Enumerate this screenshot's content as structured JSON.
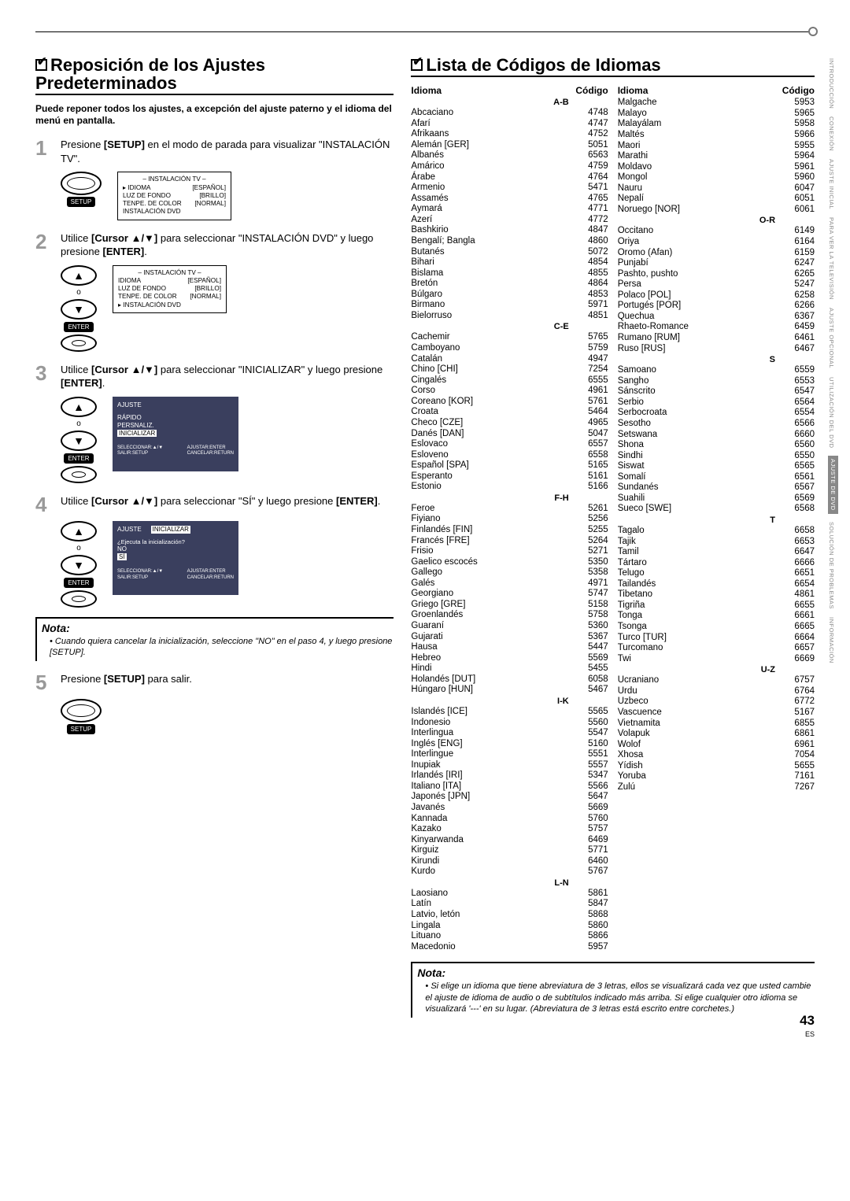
{
  "sections": {
    "reset": "Reposición de los Ajustes  Predeterminados",
    "codes": "Lista de Códigos de Idiomas"
  },
  "intro": "Puede reponer todos los ajustes, a excepción del ajuste paterno y el idioma del menú en pantalla.",
  "steps": {
    "s1": {
      "n": "1",
      "a": "Presione ",
      "b": "[SETUP]",
      "c": " en el modo de parada para visualizar \"INSTALACIÓN TV\"."
    },
    "s2": {
      "n": "2",
      "a": "Utilice ",
      "b": "[Cursor ▲/▼]",
      "c": " para seleccionar \"INSTALACIÓN DVD\" y luego presione ",
      "d": "[ENTER]",
      "e": "."
    },
    "s3": {
      "n": "3",
      "a": "Utilice ",
      "b": "[Cursor ▲/▼]",
      "c": " para seleccionar \"INICIALIZAR\" y luego presione ",
      "d": "[ENTER]",
      "e": "."
    },
    "s4": {
      "n": "4",
      "a": "Utilice ",
      "b": "[Cursor ▲/▼]",
      "c": " para seleccionar \"SÍ\" y luego presione ",
      "d": "[ENTER]",
      "e": "."
    },
    "s5": {
      "n": "5",
      "a": "Presione ",
      "b": "[SETUP]",
      "c": " para salir."
    }
  },
  "labels": {
    "setup": "SETUP",
    "enter": "ENTER",
    "o": "o"
  },
  "tv1": {
    "title": "–  INSTALACIÓN TV  –",
    "rows": [
      [
        "▸ IDIOMA",
        "[ESPAÑOL]"
      ],
      [
        "LUZ DE FONDO",
        "[BRILLO]"
      ],
      [
        "TENPE. DE COLOR",
        "[NORMAL]"
      ],
      [
        "INSTALACIÓN DVD",
        ""
      ]
    ]
  },
  "tv2": {
    "title": "–  INSTALACIÓN TV  –",
    "rows": [
      [
        "IDIOMA",
        "[ESPAÑOL]"
      ],
      [
        "LUZ DE FONDO",
        "[BRILLO]"
      ],
      [
        "TENPE. DE COLOR",
        "[NORMAL]"
      ],
      [
        "▸ INSTALACIÓN DVD",
        ""
      ]
    ]
  },
  "tv3": {
    "title": "AJUSTE",
    "rows": [
      "RÁPIDO",
      "PERSNALIZ.",
      "INICIALIZAR"
    ],
    "selected": 2,
    "footer": [
      "SELECCIONAR:▲/▼",
      "AJUSTAR:ENTER",
      "SALIR:SETUP",
      "CANCELAR:RETURN"
    ]
  },
  "tv4": {
    "title": "AJUSTE",
    "tab2": "INICIALIZAR",
    "question": "¿Ejecuta la inicialización?",
    "rows": [
      "NO",
      "SÍ"
    ],
    "selected": 1,
    "footer": [
      "SELECCIONAR:▲/▼",
      "AJUSTAR:ENTER",
      "SALIR:SETUP",
      "CANCELAR:RETURN"
    ]
  },
  "nota1": {
    "title": "Nota:",
    "items": [
      "Cuando quiera cancelar la inicialización, seleccione \"NO\" en el paso 4, y luego presione  [SETUP]."
    ]
  },
  "nota2": {
    "title": "Nota:",
    "items": [
      "Si elige un idioma que tiene abreviatura de 3 letras, ellos se visualizará cada vez que usted cambie el ajuste de idioma de audio o de subtítulos indicado más arriba. Si elige cualquier otro idioma se visualizará '---' en su lugar. (Abreviatura de 3 letras está escrito entre corchetes.)"
    ]
  },
  "langHeaders": {
    "idioma": "Idioma",
    "codigo": "Código"
  },
  "langCol1": [
    {
      "grp": "A-B"
    },
    {
      "n": "Abcaciano",
      "c": "4748"
    },
    {
      "n": "Afarí",
      "c": "4747"
    },
    {
      "n": "Afrikaans",
      "c": "4752"
    },
    {
      "n": "Alemán [GER]",
      "c": "5051"
    },
    {
      "n": "Albanés",
      "c": "6563"
    },
    {
      "n": "Amárico",
      "c": "4759"
    },
    {
      "n": "Árabe",
      "c": "4764"
    },
    {
      "n": "Armenio",
      "c": "5471"
    },
    {
      "n": "Assamés",
      "c": "4765"
    },
    {
      "n": "Aymará",
      "c": "4771"
    },
    {
      "n": "Azerí",
      "c": "4772"
    },
    {
      "n": "Bashkirio",
      "c": "4847"
    },
    {
      "n": "Bengalí; Bangla",
      "c": "4860"
    },
    {
      "n": "Butanés",
      "c": "5072"
    },
    {
      "n": "Bihari",
      "c": "4854"
    },
    {
      "n": "Bislama",
      "c": "4855"
    },
    {
      "n": "Bretón",
      "c": "4864"
    },
    {
      "n": "Búlgaro",
      "c": "4853"
    },
    {
      "n": "Birmano",
      "c": "5971"
    },
    {
      "n": "Bielorruso",
      "c": "4851"
    },
    {
      "grp": "C-E"
    },
    {
      "n": "Cachemir",
      "c": "5765"
    },
    {
      "n": "Camboyano",
      "c": "5759"
    },
    {
      "n": "Catalán",
      "c": "4947"
    },
    {
      "n": "Chino [CHI]",
      "c": "7254"
    },
    {
      "n": "Cingalés",
      "c": "6555"
    },
    {
      "n": "Corso",
      "c": "4961"
    },
    {
      "n": "Coreano [KOR]",
      "c": "5761"
    },
    {
      "n": "Croata",
      "c": "5464"
    },
    {
      "n": "Checo [CZE]",
      "c": "4965"
    },
    {
      "n": "Danés [DAN]",
      "c": "5047"
    },
    {
      "n": "Eslovaco",
      "c": "6557"
    },
    {
      "n": "Esloveno",
      "c": "6558"
    },
    {
      "n": "Español [SPA]",
      "c": "5165"
    },
    {
      "n": "Esperanto",
      "c": "5161"
    },
    {
      "n": "Estonio",
      "c": "5166"
    },
    {
      "grp": "F-H"
    },
    {
      "n": "Feroe",
      "c": "5261"
    },
    {
      "n": "Fiyiano",
      "c": "5256"
    },
    {
      "n": "Finlandés [FIN]",
      "c": "5255"
    },
    {
      "n": "Francés [FRE]",
      "c": "5264"
    },
    {
      "n": "Frisio",
      "c": "5271"
    },
    {
      "n": "Gaelico escocés",
      "c": "5350"
    },
    {
      "n": "Gallego",
      "c": "5358"
    },
    {
      "n": "Galés",
      "c": "4971"
    },
    {
      "n": "Georgiano",
      "c": "5747"
    },
    {
      "n": "Griego [GRE]",
      "c": "5158"
    },
    {
      "n": "Groenlandés",
      "c": "5758"
    },
    {
      "n": "Guaraní",
      "c": "5360"
    },
    {
      "n": "Gujarati",
      "c": "5367"
    },
    {
      "n": "Hausa",
      "c": "5447"
    },
    {
      "n": "Hebreo",
      "c": "5569"
    },
    {
      "n": "Hindi",
      "c": "5455"
    },
    {
      "n": "Holandés [DUT]",
      "c": "6058"
    },
    {
      "n": "Húngaro [HUN]",
      "c": "5467"
    },
    {
      "grp": "I-K"
    },
    {
      "n": "Islandés [ICE]",
      "c": "5565"
    },
    {
      "n": "Indonesio",
      "c": "5560"
    },
    {
      "n": "Interlingua",
      "c": "5547"
    },
    {
      "n": "Inglés [ENG]",
      "c": "5160"
    },
    {
      "n": "Interlingue",
      "c": "5551"
    },
    {
      "n": "Inupiak",
      "c": "5557"
    },
    {
      "n": "Irlandés [IRI]",
      "c": "5347"
    },
    {
      "n": "Italiano [ITA]",
      "c": "5566"
    },
    {
      "n": "Japonés [JPN]",
      "c": "5647"
    },
    {
      "n": "Javanés",
      "c": "5669"
    },
    {
      "n": "Kannada",
      "c": "5760"
    },
    {
      "n": "Kazako",
      "c": "5757"
    },
    {
      "n": "Kinyarwanda",
      "c": "6469"
    },
    {
      "n": "Kirguiz",
      "c": "5771"
    },
    {
      "n": "Kirundi",
      "c": "6460"
    },
    {
      "n": "Kurdo",
      "c": "5767"
    },
    {
      "grp": "L-N"
    },
    {
      "n": "Laosiano",
      "c": "5861"
    },
    {
      "n": "Latín",
      "c": "5847"
    },
    {
      "n": "Latvio, letón",
      "c": "5868"
    },
    {
      "n": "Lingala",
      "c": "5860"
    },
    {
      "n": "Lituano",
      "c": "5866"
    },
    {
      "n": "Macedonio",
      "c": "5957"
    }
  ],
  "langCol2": [
    {
      "n": "Malgache",
      "c": "5953"
    },
    {
      "n": "Malayo",
      "c": "5965"
    },
    {
      "n": "Malayálam",
      "c": "5958"
    },
    {
      "n": "Maltés",
      "c": "5966"
    },
    {
      "n": "Maori",
      "c": "5955"
    },
    {
      "n": "Marathi",
      "c": "5964"
    },
    {
      "n": "Moldavo",
      "c": "5961"
    },
    {
      "n": "Mongol",
      "c": "5960"
    },
    {
      "n": "Nauru",
      "c": "6047"
    },
    {
      "n": "Nepalí",
      "c": "6051"
    },
    {
      "n": "Noruego [NOR]",
      "c": "6061"
    },
    {
      "grp": "O-R"
    },
    {
      "n": "Occitano",
      "c": "6149"
    },
    {
      "n": "Oriya",
      "c": "6164"
    },
    {
      "n": "Oromo (Afan)",
      "c": "6159"
    },
    {
      "n": "Punjabí",
      "c": "6247"
    },
    {
      "n": "Pashto, pushto",
      "c": "6265"
    },
    {
      "n": "Persa",
      "c": "5247"
    },
    {
      "n": "Polaco [POL]",
      "c": "6258"
    },
    {
      "n": "Portugés [POR]",
      "c": "6266"
    },
    {
      "n": "Quechua",
      "c": "6367"
    },
    {
      "n": "Rhaeto-Romance",
      "c": "6459"
    },
    {
      "n": "Rumano [RUM]",
      "c": "6461"
    },
    {
      "n": "Ruso [RUS]",
      "c": "6467"
    },
    {
      "grp": "S"
    },
    {
      "n": "Samoano",
      "c": "6559"
    },
    {
      "n": "Sangho",
      "c": "6553"
    },
    {
      "n": "Sánscrito",
      "c": "6547"
    },
    {
      "n": "Serbio",
      "c": "6564"
    },
    {
      "n": "Serbocroata",
      "c": "6554"
    },
    {
      "n": "Sesotho",
      "c": "6566"
    },
    {
      "n": "Setswana",
      "c": "6660"
    },
    {
      "n": "Shona",
      "c": "6560"
    },
    {
      "n": "Sindhi",
      "c": "6550"
    },
    {
      "n": "Siswat",
      "c": "6565"
    },
    {
      "n": "Somalí",
      "c": "6561"
    },
    {
      "n": "Sundanés",
      "c": "6567"
    },
    {
      "n": "Suahili",
      "c": "6569"
    },
    {
      "n": "Sueco [SWE]",
      "c": "6568"
    },
    {
      "grp": "T"
    },
    {
      "n": "Tagalo",
      "c": "6658"
    },
    {
      "n": "Tajik",
      "c": "6653"
    },
    {
      "n": "Tamil",
      "c": "6647"
    },
    {
      "n": "Tártaro",
      "c": "6666"
    },
    {
      "n": "Telugo",
      "c": "6651"
    },
    {
      "n": "Tailandés",
      "c": "6654"
    },
    {
      "n": "Tibetano",
      "c": "4861"
    },
    {
      "n": "Tigriña",
      "c": "6655"
    },
    {
      "n": "Tonga",
      "c": "6661"
    },
    {
      "n": "Tsonga",
      "c": "6665"
    },
    {
      "n": "Turco [TUR]",
      "c": "6664"
    },
    {
      "n": "Turcomano",
      "c": "6657"
    },
    {
      "n": "Twi",
      "c": "6669"
    },
    {
      "grp": "U-Z"
    },
    {
      "n": "Ucraniano",
      "c": "6757"
    },
    {
      "n": "Urdu",
      "c": "6764"
    },
    {
      "n": "Uzbeco",
      "c": "6772"
    },
    {
      "n": "Vascuence",
      "c": "5167"
    },
    {
      "n": "Vietnamita",
      "c": "6855"
    },
    {
      "n": "Volapuk",
      "c": "6861"
    },
    {
      "n": "Wolof",
      "c": "6961"
    },
    {
      "n": "Xhosa",
      "c": "7054"
    },
    {
      "n": "Yídish",
      "c": "5655"
    },
    {
      "n": "Yoruba",
      "c": "7161"
    },
    {
      "n": "Zulú",
      "c": "7267"
    }
  ],
  "sidebar": [
    "INTRODUCCIÓN",
    "CONEXIÓN",
    "AJUSTE  INICIAL",
    "PARA  VER  LA  TELEVISIÓN",
    "AJUSTE  OPCIONAL",
    "UTILIZACIÓN  DEL  DVD",
    "AJUSTE  DE  DVD",
    "SOLUCIÓN  DE  PROBLEMAS",
    "INFORMACIÓN"
  ],
  "sidebarActive": 6,
  "pageNum": "43",
  "pageSuffix": "ES"
}
